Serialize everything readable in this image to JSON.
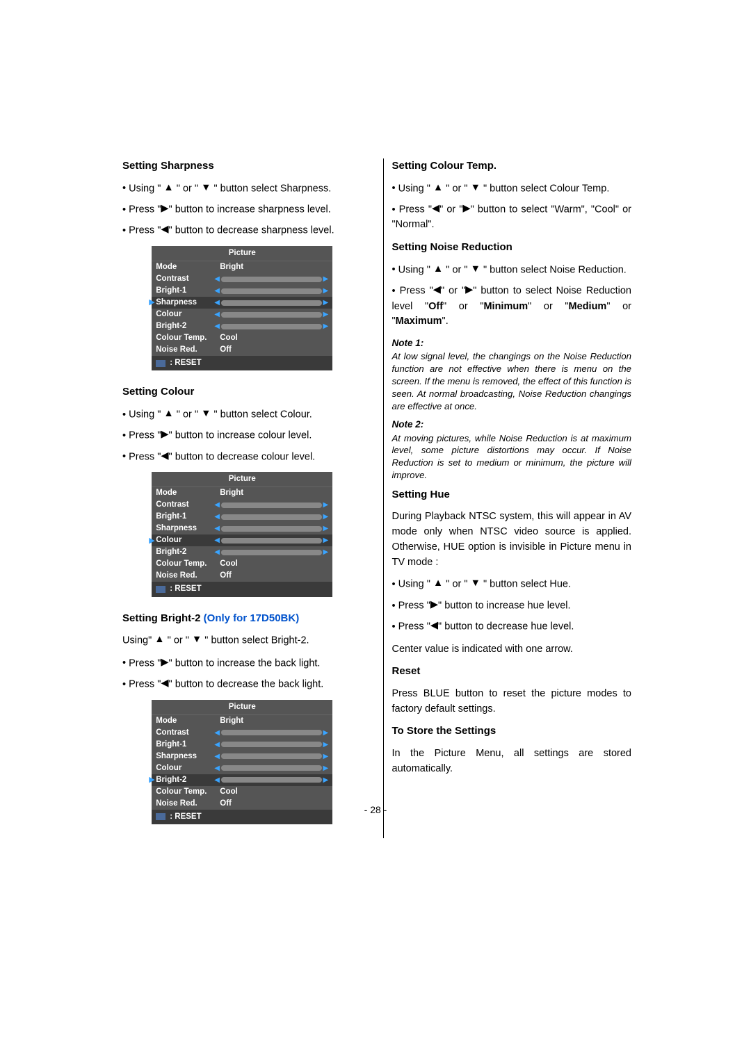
{
  "icons": {
    "up": "▲",
    "down": "▼",
    "left": "◀",
    "right": "▶"
  },
  "left_col": {
    "sec1": {
      "title": "Setting Sharpness",
      "items": [
        {
          "pre": "Using \" ",
          "i1": "up",
          "mid": " \" or \" ",
          "i2": "down",
          "post": " \" button select Sharpness."
        },
        {
          "pre": "Press \"",
          "i1": "right",
          "post": "\" button to increase sharpness level."
        },
        {
          "pre": "Press \"",
          "i1": "left",
          "post": "\" button to decrease sharpness level."
        }
      ]
    },
    "sec2": {
      "title": "Setting Colour",
      "items": [
        {
          "pre": "Using \" ",
          "i1": "up",
          "mid": " \" or \" ",
          "i2": "down",
          "post": " \" button select Colour."
        },
        {
          "pre": "Press \"",
          "i1": "right",
          "post": "\" button to increase colour level."
        },
        {
          "pre": "Press \"",
          "i1": "left",
          "post": "\" button to decrease colour level."
        }
      ]
    },
    "sec3": {
      "title_a": "Setting Bright-2 ",
      "title_b": "(Only for 17D50BK)",
      "line1": {
        "pre": " Using\" ",
        "i1": "up",
        "mid": " \" or \" ",
        "i2": "down",
        "post": " \" button select Bright-2."
      },
      "items": [
        {
          "pre": "Press \"",
          "i1": "right",
          "post": "\" button to increase the back light."
        },
        {
          "pre": "Press \"",
          "i1": "left",
          "post": "\" button to decrease the back light."
        }
      ]
    }
  },
  "right_col": {
    "sec1": {
      "title": "Setting Colour Temp.",
      "items": [
        {
          "pre": "Using \" ",
          "i1": "up",
          "mid": " \" or \" ",
          "i2": "down",
          "post": " \" button select Colour Temp."
        },
        {
          "pre": "Press \"",
          "i1": "left",
          "mid": "\" or \"",
          "i2": "right",
          "post": "\"  button to select \"Warm\", \"Cool\" or \"Normal\"."
        }
      ]
    },
    "sec2": {
      "title": "Setting Noise Reduction",
      "items": [
        {
          "pre": "Using \" ",
          "i1": "up",
          "mid": " \" or \" ",
          "i2": "down",
          "post": " \" button select Noise Reduction."
        },
        {
          "pre": "Press \"",
          "i1": "left",
          "mid": "\" or \"",
          "i2": "right",
          "post_html": "\"  button to select Noise Reduction level \"<b>Off</b>\" or \"<b>Minimum</b>\" or \"<b>Medium</b>\" or \"<b>Maximum</b>\"."
        }
      ]
    },
    "note1_label": "Note 1:",
    "note1_text": "At low signal level, the changings on the Noise Reduction function are not effective when there is menu on the screen. If the menu is removed, the effect of this function is seen. At normal broadcasting, Noise Reduction changings are effective at once.",
    "note2_label": "Note 2:",
    "note2_text": "At moving pictures, while Noise Reduction is at maximum level, some picture distortions may occur. If Noise Reduction is set to medium or minimum, the picture will improve.",
    "sec3": {
      "title": "Setting Hue",
      "para": "During Playback NTSC system, this will appear in AV mode only when NTSC video source is applied. Otherwise, HUE option is invisible in Picture menu in TV mode :",
      "items": [
        {
          "pre": "Using \" ",
          "i1": "up",
          "mid": " \" or \" ",
          "i2": "down",
          "post": " \" button select Hue."
        },
        {
          "pre": "Press \"",
          "i1": "right",
          "post": "\" button to increase hue level."
        },
        {
          "pre": "Press \"",
          "i1": "left",
          "post": "\" button to decrease hue level."
        }
      ],
      "center": "Center value is indicated with one arrow."
    },
    "sec4": {
      "title": "Reset",
      "para": "Press BLUE button to reset the picture modes to factory default settings."
    },
    "sec5": {
      "title": "To Store the Settings",
      "para": "In the Picture Menu, all settings are stored automatically."
    }
  },
  "menus": {
    "common": {
      "title": "Picture",
      "reset": ": RESET",
      "mode_label": "Mode",
      "mode_value": "Bright",
      "rows": [
        "Contrast",
        "Bright-1",
        "Sharpness",
        "Colour",
        "Bright-2"
      ],
      "ct_label": "Colour Temp.",
      "ct_value": "Cool",
      "nr_label": "Noise Red.",
      "nr_value": "Off",
      "fills": {
        "Contrast": 72,
        "Bright-1": 72,
        "Sharpness": 72,
        "Colour": 72,
        "Bright-2": 72
      }
    },
    "menu1_selected": "Sharpness",
    "menu2_selected": "Colour",
    "menu3_selected": "Bright-2"
  },
  "page_number": "- 28 -"
}
